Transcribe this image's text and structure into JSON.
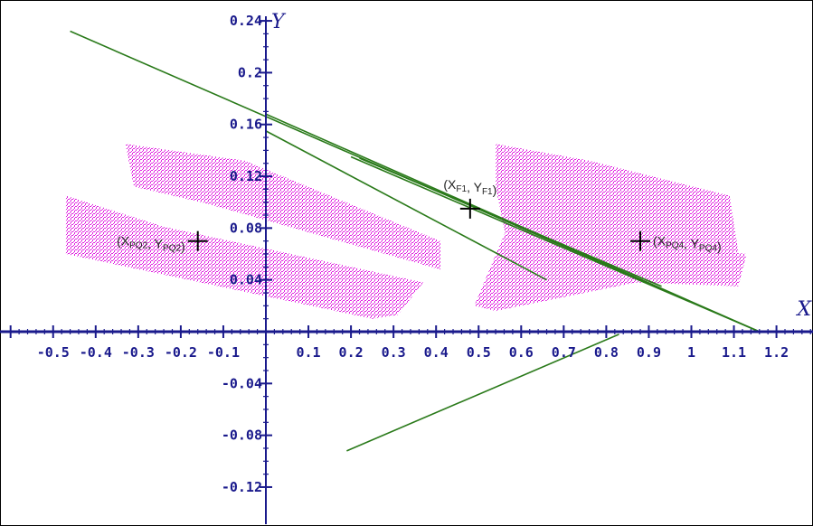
{
  "chart_data": {
    "type": "scatter",
    "title": "",
    "xlabel": "X",
    "ylabel": "Y",
    "xlim": [
      -0.6,
      1.28
    ],
    "ylim": [
      -0.136,
      0.25
    ],
    "grid": false,
    "x_ticks": [
      -0.5,
      -0.4,
      -0.3,
      -0.2,
      -0.1,
      0.1,
      0.2,
      0.3,
      0.4,
      0.5,
      0.6,
      0.7,
      0.8,
      0.9,
      1,
      1.1,
      1.2
    ],
    "x_tick_labels": [
      "-0.5",
      "-0.4",
      "-0.3",
      "-0.2",
      "-0.1",
      "0.1",
      "0.2",
      "0.3",
      "0.4",
      "0.5",
      "0.6",
      "0.7",
      "0.8",
      "0.9",
      "1",
      "1.1",
      "1.2"
    ],
    "y_ticks": [
      0.24,
      0.2,
      0.16,
      0.12,
      0.08,
      0.04,
      -0.04,
      -0.08,
      -0.12
    ],
    "y_tick_labels": [
      "0.24",
      "0.2",
      "0.16",
      "0.12",
      "0.08",
      "0.04",
      "-0.04",
      "-0.08",
      "-0.12"
    ],
    "colors": {
      "cloud": "#e020e0",
      "line": "#2a7a1a",
      "axis": "#1a1a8c",
      "marker": "#000000"
    },
    "point_clouds": [
      {
        "polygon": [
          [
            -0.47,
            0.105
          ],
          [
            -0.24,
            0.081
          ],
          [
            0.37,
            0.038
          ],
          [
            0.31,
            0.013
          ],
          [
            0.25,
            0.01
          ],
          [
            -0.47,
            0.06
          ]
        ]
      },
      {
        "polygon": [
          [
            -0.33,
            0.145
          ],
          [
            -0.05,
            0.132
          ],
          [
            0.41,
            0.07
          ],
          [
            0.41,
            0.048
          ],
          [
            -0.14,
            0.099
          ],
          [
            -0.31,
            0.112
          ]
        ]
      },
      {
        "polygon": [
          [
            0.54,
            0.145
          ],
          [
            0.76,
            0.132
          ],
          [
            1.09,
            0.105
          ],
          [
            1.11,
            0.062
          ],
          [
            1.01,
            0.052
          ],
          [
            0.58,
            0.047
          ],
          [
            0.54,
            0.112
          ]
        ]
      },
      {
        "polygon": [
          [
            0.56,
            0.075
          ],
          [
            0.72,
            0.072
          ],
          [
            1.13,
            0.06
          ],
          [
            1.11,
            0.035
          ],
          [
            0.87,
            0.038
          ],
          [
            0.54,
            0.016
          ],
          [
            0.49,
            0.02
          ]
        ]
      }
    ],
    "lines": [
      {
        "x": [
          -0.46,
          1.16
        ],
        "y": [
          0.232,
          0.0
        ]
      },
      {
        "x": [
          0.0,
          1.16
        ],
        "y": [
          0.168,
          0.0
        ]
      },
      {
        "x": [
          0.2,
          1.16
        ],
        "y": [
          0.135,
          0.0
        ]
      },
      {
        "x": [
          0.22,
          0.93
        ],
        "y": [
          0.134,
          0.035
        ]
      },
      {
        "x": [
          0.0,
          0.66
        ],
        "y": [
          0.155,
          0.04
        ]
      },
      {
        "x": [
          0.19,
          0.83
        ],
        "y": [
          -0.092,
          -0.002
        ]
      }
    ],
    "markers": [
      {
        "label": "(X_{PQ2}, Y_{PQ2})",
        "x": -0.16,
        "y": 0.07,
        "label_side": "left"
      },
      {
        "label": "(X_{F1}, Y_{F1})",
        "x": 0.48,
        "y": 0.095,
        "label_side": "above"
      },
      {
        "label": "(X_{PQ4}, Y_{PQ4})",
        "x": 0.88,
        "y": 0.07,
        "label_side": "right"
      }
    ]
  }
}
